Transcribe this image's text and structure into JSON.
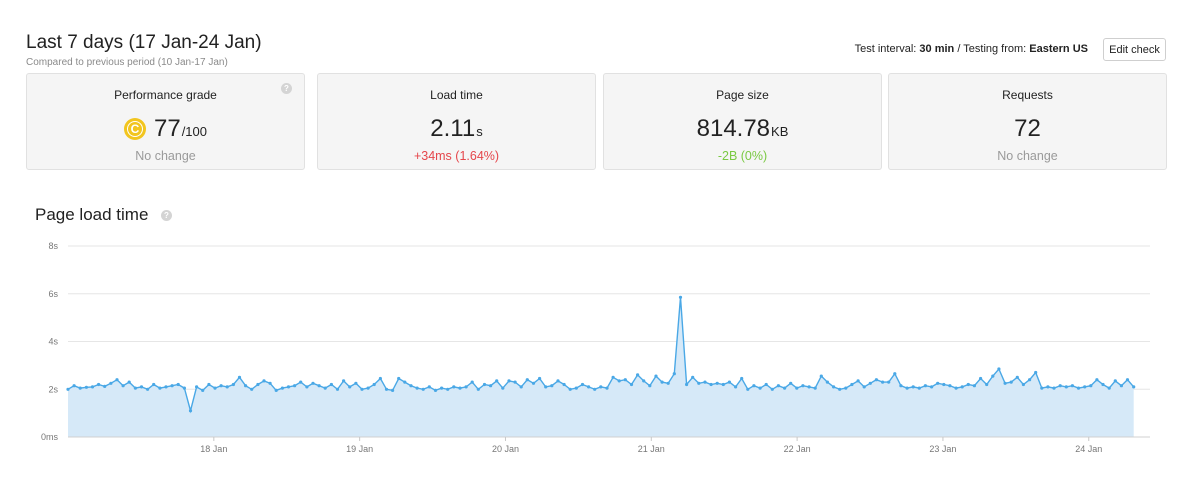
{
  "header": {
    "title": "Last 7 days (17 Jan-24 Jan)",
    "subtitle": "Compared to previous period (10 Jan-17 Jan)",
    "interval_label": "Test interval:",
    "interval_value": "30 min",
    "separator": "/",
    "testing_label": "Testing from:",
    "testing_value": "Eastern US",
    "edit_button": "Edit check"
  },
  "cards": {
    "grade": {
      "label": "Performance grade",
      "letter": "C",
      "value": "77",
      "unit": "/100",
      "delta": "No change",
      "delta_color": "#9a9a9a",
      "help": "?"
    },
    "load": {
      "label": "Load time",
      "value": "2.11",
      "unit": "s",
      "delta": "+34ms (1.64%)",
      "delta_color": "#e5464b"
    },
    "size": {
      "label": "Page size",
      "value": "814.78",
      "unit": "KB",
      "delta": "-2B (0%)",
      "delta_color": "#7ac943"
    },
    "requests": {
      "label": "Requests",
      "value": "72",
      "unit": "",
      "delta": "No change",
      "delta_color": "#9a9a9a"
    }
  },
  "section": {
    "title": "Page load time",
    "help": "?"
  },
  "colors": {
    "accent": "#4aa8e6",
    "fill": "#d6e9f8",
    "grade_badge": "#f2c51e"
  },
  "chart_data": {
    "type": "area",
    "title": "Page load time",
    "y_tick_labels": [
      "0ms",
      "2s",
      "4s",
      "6s",
      "8s"
    ],
    "y_tick_values": [
      0,
      2,
      4,
      6,
      8
    ],
    "ylim": [
      0,
      8
    ],
    "x_tick_labels": [
      "18 Jan",
      "19 Jan",
      "20 Jan",
      "21 Jan",
      "22 Jan",
      "23 Jan",
      "24 Jan"
    ],
    "x_tick_positions_days": [
      1,
      2,
      3,
      4,
      5,
      6,
      7
    ],
    "x_range_days": [
      0.0,
      7.42
    ],
    "series": [
      {
        "name": "Load time (s)",
        "x_step_days": 0.042,
        "values": [
          2.0,
          2.15,
          2.05,
          2.08,
          2.1,
          2.2,
          2.12,
          2.25,
          2.4,
          2.15,
          2.3,
          2.05,
          2.1,
          2.0,
          2.2,
          2.05,
          2.1,
          2.15,
          2.2,
          2.05,
          1.1,
          2.1,
          1.95,
          2.2,
          2.05,
          2.15,
          2.1,
          2.2,
          2.5,
          2.15,
          2.0,
          2.2,
          2.35,
          2.25,
          1.95,
          2.05,
          2.1,
          2.15,
          2.3,
          2.1,
          2.25,
          2.15,
          2.05,
          2.2,
          2.0,
          2.35,
          2.1,
          2.25,
          2.0,
          2.05,
          2.2,
          2.45,
          2.0,
          1.95,
          2.45,
          2.3,
          2.15,
          2.05,
          2.0,
          2.1,
          1.95,
          2.05,
          2.0,
          2.1,
          2.05,
          2.1,
          2.3,
          2.0,
          2.2,
          2.15,
          2.35,
          2.05,
          2.35,
          2.3,
          2.1,
          2.4,
          2.25,
          2.45,
          2.1,
          2.15,
          2.35,
          2.2,
          2.0,
          2.05,
          2.2,
          2.1,
          2.0,
          2.1,
          2.05,
          2.5,
          2.35,
          2.4,
          2.2,
          2.6,
          2.35,
          2.15,
          2.55,
          2.3,
          2.25,
          2.65,
          5.85,
          2.2,
          2.5,
          2.25,
          2.3,
          2.2,
          2.25,
          2.2,
          2.3,
          2.1,
          2.45,
          2.0,
          2.15,
          2.05,
          2.2,
          2.0,
          2.15,
          2.05,
          2.25,
          2.05,
          2.15,
          2.1,
          2.05,
          2.55,
          2.3,
          2.1,
          2.0,
          2.05,
          2.2,
          2.35,
          2.1,
          2.25,
          2.4,
          2.3,
          2.3,
          2.65,
          2.15,
          2.05,
          2.1,
          2.05,
          2.15,
          2.1,
          2.25,
          2.2,
          2.15,
          2.05,
          2.1,
          2.2,
          2.15,
          2.45,
          2.2,
          2.55,
          2.85,
          2.25,
          2.3,
          2.5,
          2.2,
          2.4,
          2.7,
          2.05,
          2.1,
          2.05,
          2.15,
          2.1,
          2.15,
          2.05,
          2.1,
          2.15,
          2.4,
          2.2,
          2.05,
          2.35,
          2.15,
          2.4,
          2.1
        ]
      }
    ]
  }
}
